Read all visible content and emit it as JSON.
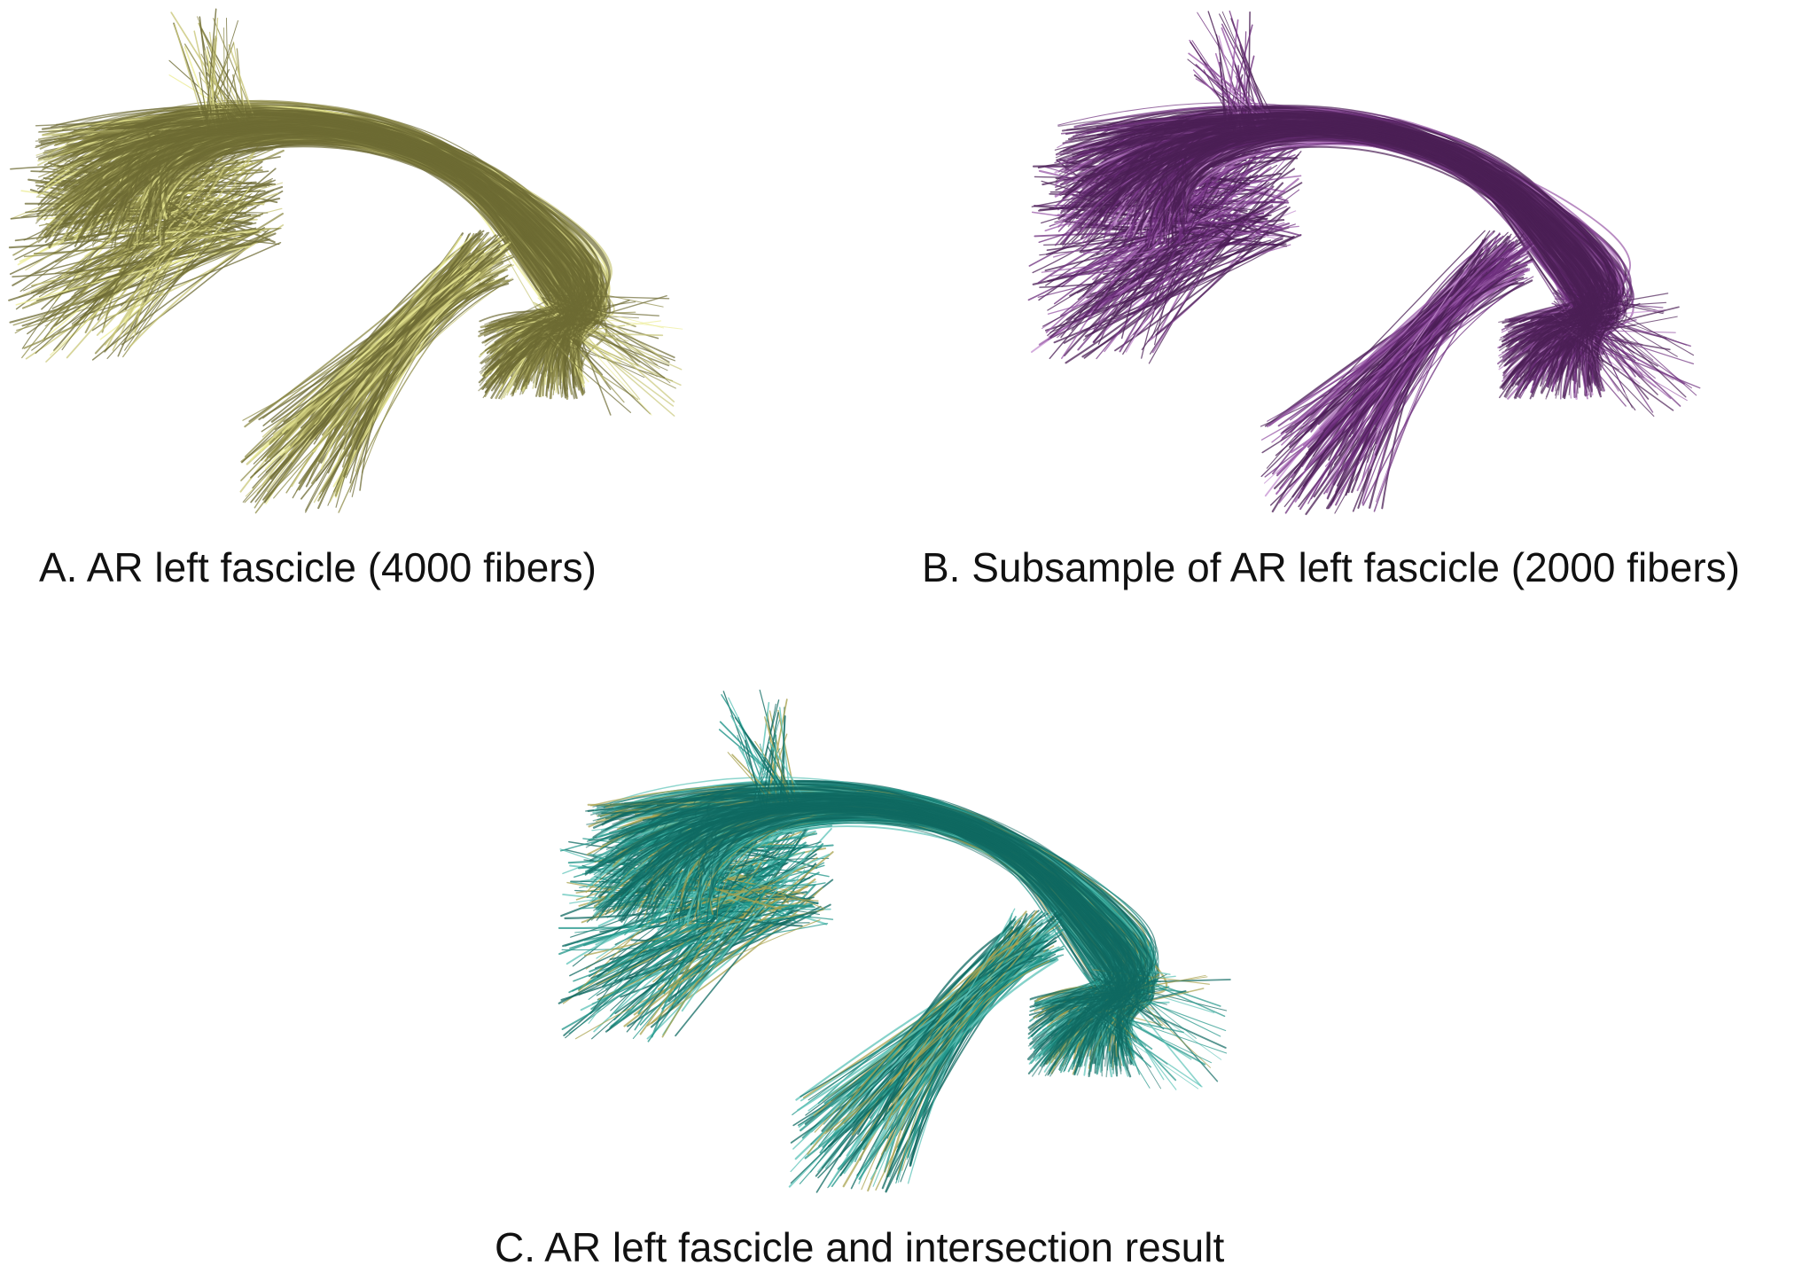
{
  "figure": {
    "panels": [
      {
        "id": "A",
        "caption": "A. AR left fascicle (4000 fibers)",
        "colors": {
          "dark": "#6e6b34",
          "mid": "#8f8c4a",
          "light": "#c9c77a",
          "highlight": "#ecec96"
        }
      },
      {
        "id": "B",
        "caption": "B. Subsample of AR left fascicle (2000 fibers)",
        "colors": {
          "dark": "#4b1f55",
          "mid": "#6e2f7d",
          "light": "#9a5aa8",
          "highlight": "#c48fd0"
        }
      },
      {
        "id": "C",
        "caption": "C. AR left fascicle and intersection result",
        "colors": {
          "dark": "#0f6a62",
          "mid": "#1f9488",
          "light": "#5cc3b8",
          "highlight": "#a9a34f"
        }
      }
    ]
  }
}
